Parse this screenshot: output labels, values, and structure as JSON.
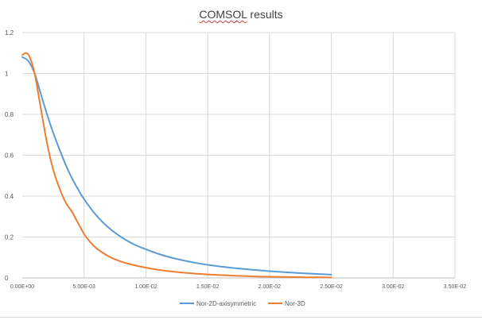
{
  "chart_data": {
    "type": "line",
    "title_main": "COMSOL",
    "title_rest": " results",
    "xlabel": "",
    "ylabel": "",
    "xlim": [
      0,
      0.035
    ],
    "ylim": [
      0,
      1.2
    ],
    "x_ticks": [
      0,
      0.005,
      0.01,
      0.015,
      0.02,
      0.025,
      0.03,
      0.035
    ],
    "x_tick_labels": [
      "0.00E+00",
      "5.00E-03",
      "1.00E-02",
      "1.50E-02",
      "2.00E-02",
      "2.50E-02",
      "3.00E-02",
      "3.50E-02"
    ],
    "y_ticks": [
      0,
      0.2,
      0.4,
      0.6,
      0.8,
      1.0,
      1.2
    ],
    "y_tick_labels": [
      "0",
      "0.2",
      "0.4",
      "0.6",
      "0.8",
      "1",
      "1.2"
    ],
    "grid": true,
    "legend_position": "bottom",
    "series": [
      {
        "name": "Nor-2D-axisymmetric",
        "color": "#5b9bd5",
        "x": [
          0,
          0.0005,
          0.001,
          0.0015,
          0.002,
          0.0025,
          0.003,
          0.0035,
          0.004,
          0.0045,
          0.005,
          0.006,
          0.007,
          0.008,
          0.009,
          0.01,
          0.011,
          0.012,
          0.013,
          0.014,
          0.015,
          0.016,
          0.017,
          0.018,
          0.019,
          0.02,
          0.021,
          0.022,
          0.023,
          0.024,
          0.025
        ],
        "y": [
          1.08,
          1.06,
          1.0,
          0.9,
          0.8,
          0.71,
          0.63,
          0.555,
          0.49,
          0.435,
          0.385,
          0.305,
          0.245,
          0.2,
          0.165,
          0.14,
          0.118,
          0.1,
          0.086,
          0.074,
          0.064,
          0.056,
          0.049,
          0.043,
          0.038,
          0.033,
          0.029,
          0.025,
          0.022,
          0.019,
          0.016
        ]
      },
      {
        "name": "Nor-3D",
        "color": "#ed7d31",
        "x": [
          0,
          0.0003,
          0.0006,
          0.001,
          0.0015,
          0.002,
          0.0025,
          0.003,
          0.0035,
          0.004,
          0.0045,
          0.005,
          0.0055,
          0.006,
          0.007,
          0.008,
          0.009,
          0.01,
          0.011,
          0.012,
          0.013,
          0.014,
          0.015,
          0.016,
          0.017,
          0.018,
          0.019,
          0.02,
          0.021,
          0.022,
          0.023,
          0.024,
          0.025
        ],
        "y": [
          1.09,
          1.1,
          1.08,
          1.0,
          0.83,
          0.66,
          0.53,
          0.44,
          0.37,
          0.325,
          0.27,
          0.215,
          0.175,
          0.145,
          0.105,
          0.08,
          0.063,
          0.05,
          0.04,
          0.032,
          0.026,
          0.021,
          0.017,
          0.014,
          0.011,
          0.009,
          0.007,
          0.006,
          0.005,
          0.004,
          0.003,
          0.003,
          0.002
        ]
      }
    ]
  }
}
